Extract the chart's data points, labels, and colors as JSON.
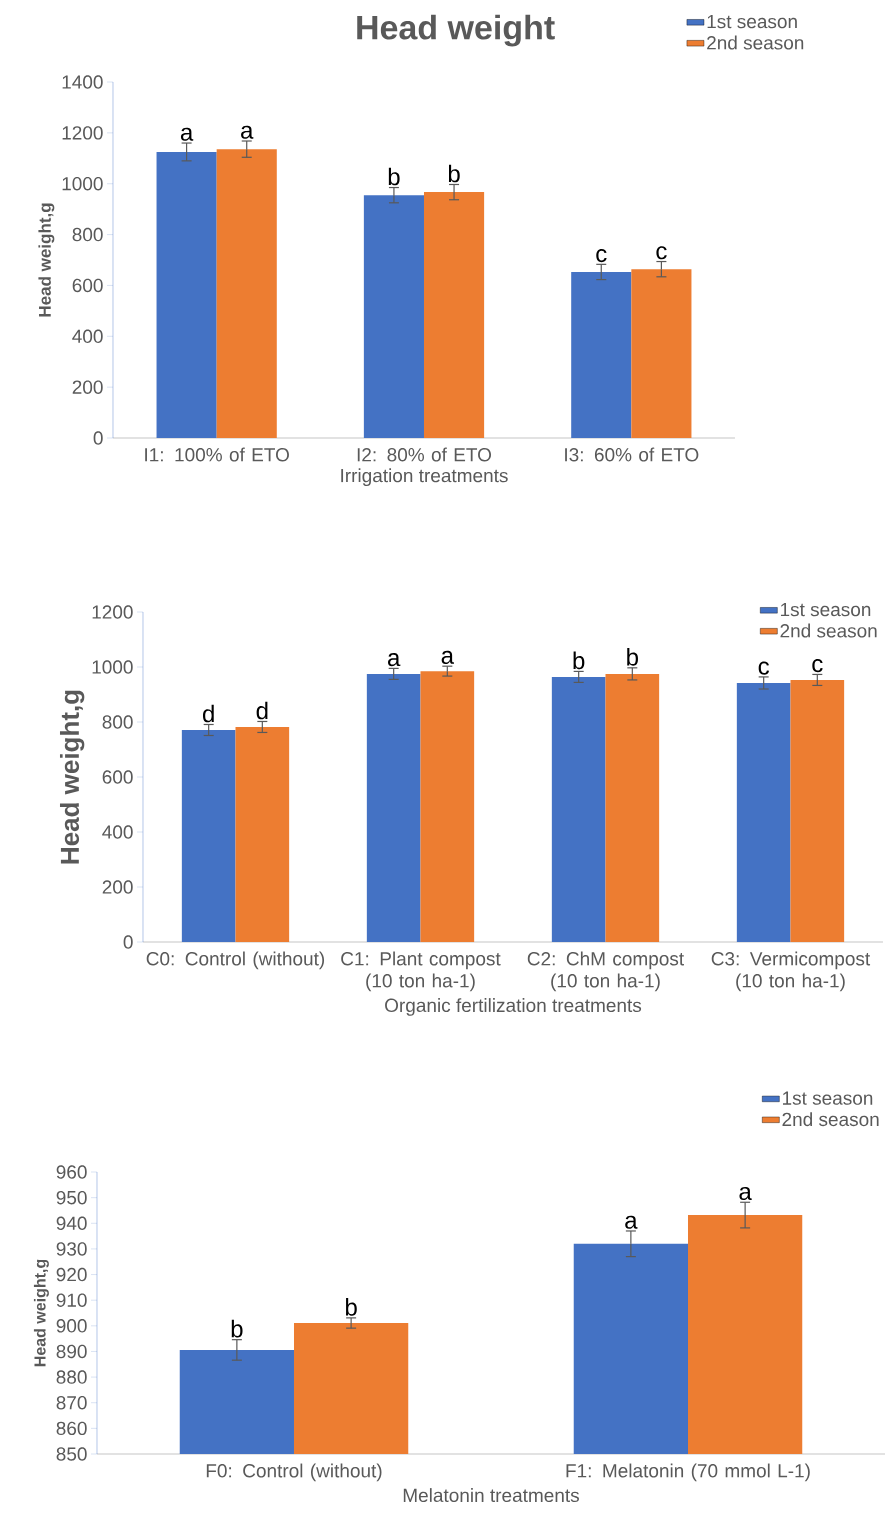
{
  "chart_data": [
    {
      "type": "bar",
      "title": "Head weight",
      "xlabel": "Irrigation treatments",
      "ylabel": "Head weight,g",
      "categories": [
        "I1: 100% of ETO",
        "I2: 80% of ETO",
        "I3: 60% of ETO"
      ],
      "series": [
        {
          "name": "1st season",
          "color": "#4472c4",
          "values": [
            1125,
            955,
            653
          ],
          "errors": [
            35,
            30,
            30
          ],
          "value_labels": [
            "a",
            "b",
            "c"
          ]
        },
        {
          "name": "2nd season",
          "color": "#ed7d31",
          "values": [
            1136,
            967,
            664
          ],
          "errors": [
            32,
            30,
            30
          ],
          "value_labels": [
            "a",
            "b",
            "c"
          ]
        }
      ],
      "ylim": [
        0,
        1400
      ],
      "yticks": [
        0,
        200,
        400,
        600,
        800,
        1000,
        1200,
        1400
      ],
      "legend": "top right"
    },
    {
      "type": "bar",
      "xlabel": "Organic fertilization treatments",
      "ylabel": "Head weight,g",
      "categories": [
        "C0: Control (without)",
        "C1: Plant compost (10 ton ha-1)",
        "C2: ChM compost (10 ton ha-1)",
        "C3: Vermicompost (10 ton ha-1)"
      ],
      "series": [
        {
          "name": "1st season",
          "color": "#4472c4",
          "values": [
            771,
            975,
            964,
            942
          ],
          "errors": [
            20,
            20,
            20,
            22
          ],
          "value_labels": [
            "d",
            "a",
            "b",
            "c"
          ]
        },
        {
          "name": "2nd season",
          "color": "#ed7d31",
          "values": [
            782,
            985,
            975,
            953
          ],
          "errors": [
            20,
            18,
            22,
            20
          ],
          "value_labels": [
            "d",
            "a",
            "b",
            "c"
          ]
        }
      ],
      "ylim": [
        0,
        1200
      ],
      "yticks": [
        0,
        200,
        400,
        600,
        800,
        1000,
        1200
      ],
      "legend": "top right"
    },
    {
      "type": "bar",
      "xlabel": "Melatonin treatments",
      "ylabel": "Head weight,g",
      "categories": [
        "F0: Control (without)",
        "F1: Melatonin (70 mmol L-1)"
      ],
      "series": [
        {
          "name": "1st season",
          "color": "#4472c4",
          "values": [
            890.6,
            932
          ],
          "errors": [
            4,
            5
          ],
          "value_labels": [
            "b",
            "a"
          ]
        },
        {
          "name": "2nd season",
          "color": "#ed7d31",
          "values": [
            901.1,
            943.2
          ],
          "errors": [
            2,
            5
          ],
          "value_labels": [
            "b",
            "a"
          ]
        }
      ],
      "ylim": [
        850,
        960
      ],
      "yticks": [
        850,
        860,
        870,
        880,
        890,
        900,
        910,
        920,
        930,
        940,
        950,
        960
      ],
      "legend": "top right"
    }
  ]
}
